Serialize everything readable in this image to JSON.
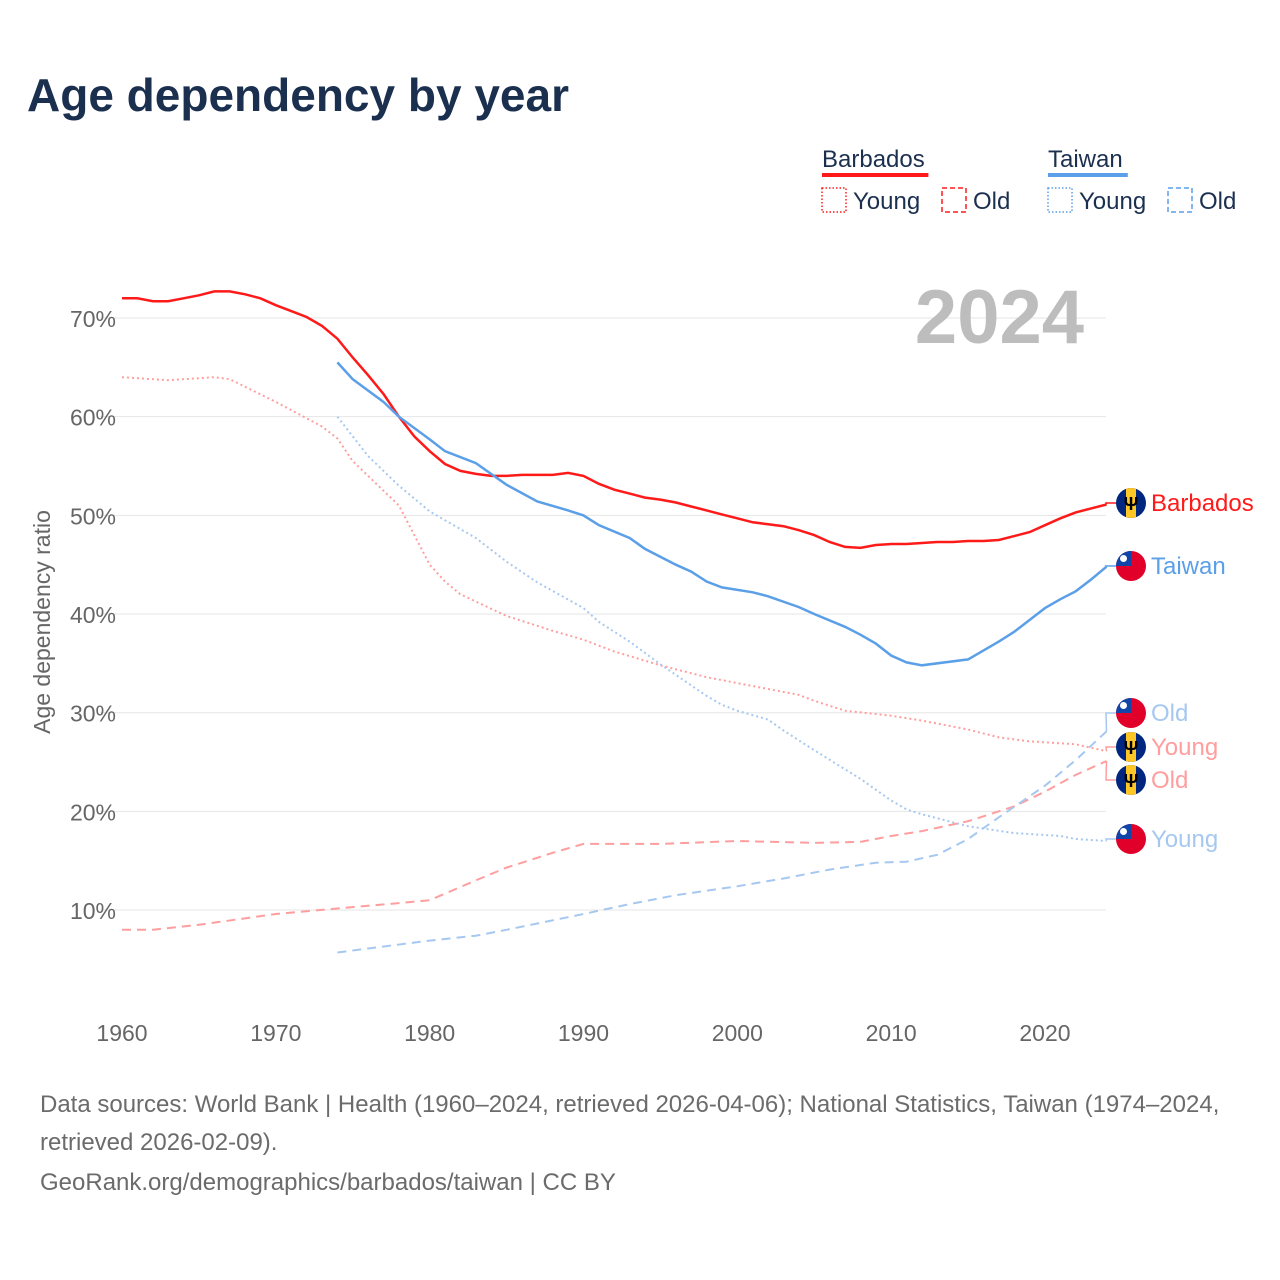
{
  "title": "Age dependency by year",
  "footer": {
    "sources": "Data sources: World Bank | Health (1960–2024, retrieved 2026-04-06); National Statistics, Taiwan (1974–2024, retrieved 2026-02-09).",
    "link": "GeoRank.org/demographics/barbados/taiwan | CC BY"
  },
  "chart_data": {
    "type": "line",
    "title": "Age dependency by year",
    "ylabel": "Age dependency ratio",
    "xlabel": "",
    "year_label": "2024",
    "xlim": [
      1960,
      2024
    ],
    "ylim": [
      0,
      75
    ],
    "x_ticks": [
      "1960",
      "1970",
      "1980",
      "1990",
      "2000",
      "2010",
      "2020"
    ],
    "y_ticks": [
      "10%",
      "20%",
      "30%",
      "40%",
      "50%",
      "60%",
      "70%"
    ],
    "grid": true,
    "legend": {
      "placement": "top-right",
      "groups": [
        {
          "country": "Barbados",
          "color": "#ff1a1a",
          "items": [
            "Young",
            "Old"
          ]
        },
        {
          "country": "Taiwan",
          "color": "#5b9fe8",
          "items": [
            "Young",
            "Old"
          ]
        }
      ]
    },
    "series": [
      {
        "name": "Barbados",
        "country": "Barbados",
        "kind": "total",
        "end_label": "Barbados",
        "color": "#ff1a1a",
        "style": "solid",
        "points": [
          [
            1960,
            72
          ],
          [
            1961,
            72
          ],
          [
            1962,
            71.7
          ],
          [
            1963,
            71.7
          ],
          [
            1964,
            72
          ],
          [
            1965,
            72.3
          ],
          [
            1966,
            72.7
          ],
          [
            1967,
            72.7
          ],
          [
            1968,
            72.4
          ],
          [
            1969,
            72
          ],
          [
            1970,
            71.3
          ],
          [
            1971,
            70.7
          ],
          [
            1972,
            70.1
          ],
          [
            1973,
            69.2
          ],
          [
            1974,
            67.9
          ],
          [
            1975,
            66
          ],
          [
            1976,
            64.2
          ],
          [
            1977,
            62.3
          ],
          [
            1978,
            60
          ],
          [
            1979,
            58
          ],
          [
            1980,
            56.5
          ],
          [
            1981,
            55.2
          ],
          [
            1982,
            54.5
          ],
          [
            1983,
            54.2
          ],
          [
            1984,
            54
          ],
          [
            1985,
            54
          ],
          [
            1986,
            54.1
          ],
          [
            1987,
            54.1
          ],
          [
            1988,
            54.1
          ],
          [
            1989,
            54.3
          ],
          [
            1990,
            54
          ],
          [
            1991,
            53.2
          ],
          [
            1992,
            52.6
          ],
          [
            1993,
            52.2
          ],
          [
            1994,
            51.8
          ],
          [
            1995,
            51.6
          ],
          [
            1996,
            51.3
          ],
          [
            1997,
            50.9
          ],
          [
            1998,
            50.5
          ],
          [
            1999,
            50.1
          ],
          [
            2000,
            49.7
          ],
          [
            2001,
            49.3
          ],
          [
            2002,
            49.1
          ],
          [
            2003,
            48.9
          ],
          [
            2004,
            48.5
          ],
          [
            2005,
            48
          ],
          [
            2006,
            47.3
          ],
          [
            2007,
            46.8
          ],
          [
            2008,
            46.7
          ],
          [
            2009,
            47
          ],
          [
            2010,
            47.1
          ],
          [
            2011,
            47.1
          ],
          [
            2012,
            47.2
          ],
          [
            2013,
            47.3
          ],
          [
            2014,
            47.3
          ],
          [
            2015,
            47.4
          ],
          [
            2016,
            47.4
          ],
          [
            2017,
            47.5
          ],
          [
            2018,
            47.9
          ],
          [
            2019,
            48.3
          ],
          [
            2020,
            49
          ],
          [
            2021,
            49.7
          ],
          [
            2022,
            50.3
          ],
          [
            2023,
            50.7
          ],
          [
            2024,
            51.1
          ]
        ]
      },
      {
        "name": "Taiwan",
        "country": "Taiwan",
        "kind": "total",
        "end_label": "Taiwan",
        "color": "#5b9fe8",
        "style": "solid",
        "points": [
          [
            1974,
            65.5
          ],
          [
            1975,
            63.8
          ],
          [
            1977,
            61.5
          ],
          [
            1978,
            60
          ],
          [
            1980,
            57.7
          ],
          [
            1981,
            56.5
          ],
          [
            1983,
            55.3
          ],
          [
            1985,
            53.1
          ],
          [
            1987,
            51.4
          ],
          [
            1989,
            50.5
          ],
          [
            1990,
            50
          ],
          [
            1991,
            49
          ],
          [
            1993,
            47.7
          ],
          [
            1994,
            46.6
          ],
          [
            1996,
            45
          ],
          [
            1997,
            44.3
          ],
          [
            1998,
            43.3
          ],
          [
            1999,
            42.7
          ],
          [
            2001,
            42.2
          ],
          [
            2002,
            41.8
          ],
          [
            2004,
            40.7
          ],
          [
            2005,
            40
          ],
          [
            2007,
            38.7
          ],
          [
            2008,
            37.9
          ],
          [
            2009,
            37
          ],
          [
            2010,
            35.8
          ],
          [
            2011,
            35.1
          ],
          [
            2012,
            34.8
          ],
          [
            2015,
            35.4
          ],
          [
            2017,
            37.2
          ],
          [
            2018,
            38.2
          ],
          [
            2020,
            40.6
          ],
          [
            2021,
            41.5
          ],
          [
            2022,
            42.3
          ],
          [
            2023,
            43.5
          ],
          [
            2024,
            44.8
          ]
        ]
      },
      {
        "name": "Barbados Young",
        "country": "Barbados",
        "kind": "young",
        "end_label": "Young",
        "color": "#ff9e9e",
        "style": "dotted",
        "points": [
          [
            1960,
            64
          ],
          [
            1963,
            63.7
          ],
          [
            1966,
            64
          ],
          [
            1967,
            63.8
          ],
          [
            1970,
            61.5
          ],
          [
            1973,
            59
          ],
          [
            1974,
            57.8
          ],
          [
            1975,
            55.5
          ],
          [
            1978,
            51
          ],
          [
            1980,
            45
          ],
          [
            1981,
            43.3
          ],
          [
            1982,
            42
          ],
          [
            1985,
            39.8
          ],
          [
            1988,
            38.3
          ],
          [
            1990,
            37.4
          ],
          [
            1992,
            36.2
          ],
          [
            1995,
            34.8
          ],
          [
            1998,
            33.6
          ],
          [
            2000,
            33
          ],
          [
            2002,
            32.4
          ],
          [
            2004,
            31.8
          ],
          [
            2005,
            31.2
          ],
          [
            2007,
            30.2
          ],
          [
            2010,
            29.7
          ],
          [
            2012,
            29.2
          ],
          [
            2015,
            28.3
          ],
          [
            2017,
            27.5
          ],
          [
            2019,
            27.1
          ],
          [
            2022,
            26.8
          ],
          [
            2024,
            26.1
          ]
        ]
      },
      {
        "name": "Barbados Old",
        "country": "Barbados",
        "kind": "old",
        "end_label": "Old",
        "color": "#ff9e9e",
        "style": "dashed",
        "points": [
          [
            1960,
            8
          ],
          [
            1962,
            8
          ],
          [
            1965,
            8.5
          ],
          [
            1970,
            9.6
          ],
          [
            1975,
            10.3
          ],
          [
            1978,
            10.7
          ],
          [
            1980,
            11
          ],
          [
            1983,
            13
          ],
          [
            1985,
            14.3
          ],
          [
            1988,
            15.8
          ],
          [
            1990,
            16.7
          ],
          [
            1995,
            16.7
          ],
          [
            2000,
            17
          ],
          [
            2005,
            16.8
          ],
          [
            2008,
            16.9
          ],
          [
            2010,
            17.5
          ],
          [
            2012,
            18
          ],
          [
            2015,
            19
          ],
          [
            2018,
            20.5
          ],
          [
            2020,
            22
          ],
          [
            2022,
            23.7
          ],
          [
            2024,
            25.1
          ]
        ]
      },
      {
        "name": "Taiwan Young",
        "country": "Taiwan",
        "kind": "young",
        "end_label": "Young",
        "color": "#a6c8f0",
        "style": "dotted",
        "points": [
          [
            1974,
            60
          ],
          [
            1976,
            56
          ],
          [
            1978,
            53
          ],
          [
            1980,
            50.4
          ],
          [
            1981,
            49.5
          ],
          [
            1983,
            47.7
          ],
          [
            1985,
            45.3
          ],
          [
            1987,
            43.2
          ],
          [
            1990,
            40.6
          ],
          [
            1991,
            39.2
          ],
          [
            1993,
            37.2
          ],
          [
            1995,
            34.9
          ],
          [
            1998,
            31.7
          ],
          [
            1999,
            30.8
          ],
          [
            2000,
            30.2
          ],
          [
            2002,
            29.3
          ],
          [
            2003,
            28.2
          ],
          [
            2005,
            26.2
          ],
          [
            2008,
            23.3
          ],
          [
            2010,
            21.1
          ],
          [
            2011,
            20.2
          ],
          [
            2012,
            19.7
          ],
          [
            2015,
            18.5
          ],
          [
            2018,
            17.8
          ],
          [
            2021,
            17.5
          ],
          [
            2022,
            17.2
          ],
          [
            2024,
            17
          ]
        ]
      },
      {
        "name": "Taiwan Old",
        "country": "Taiwan",
        "kind": "old",
        "end_label": "Old",
        "color": "#a6c8f0",
        "style": "dashed",
        "points": [
          [
            1974,
            5.7
          ],
          [
            1976,
            6.1
          ],
          [
            1980,
            6.9
          ],
          [
            1983,
            7.4
          ],
          [
            1985,
            8
          ],
          [
            1990,
            9.6
          ],
          [
            1993,
            10.6
          ],
          [
            1996,
            11.5
          ],
          [
            2000,
            12.4
          ],
          [
            2003,
            13.2
          ],
          [
            2006,
            14.1
          ],
          [
            2009,
            14.8
          ],
          [
            2011,
            14.9
          ],
          [
            2013,
            15.6
          ],
          [
            2015,
            17.2
          ],
          [
            2017,
            19.4
          ],
          [
            2020,
            22.6
          ],
          [
            2022,
            25.2
          ],
          [
            2024,
            28.1
          ]
        ]
      }
    ]
  }
}
